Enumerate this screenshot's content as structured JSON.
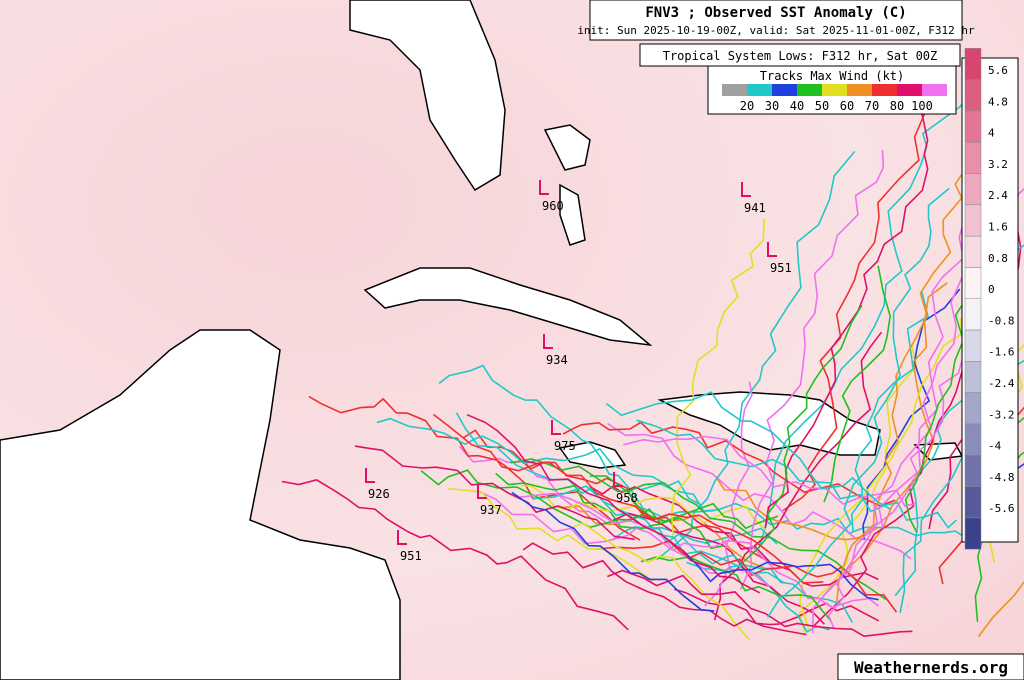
{
  "header": {
    "title": "FNV3 ; Observed SST Anomaly (C)",
    "subtitle": "init: Sun 2025-10-19-00Z, valid: Sat 2025-11-01-00Z, F312 hr"
  },
  "lows_label": "Tropical System Lows: F312 hr, Sat 00Z",
  "track_legend": {
    "title": "Tracks Max Wind (kt)",
    "labels": [
      "20",
      "30",
      "40",
      "50",
      "60",
      "70",
      "80",
      "100"
    ],
    "colors": [
      "#a0a0a0",
      "#20c8c8",
      "#2040e0",
      "#20c020",
      "#e0e020",
      "#f09020",
      "#f03030",
      "#e0106a",
      "#f070f0"
    ]
  },
  "colorbar": {
    "labels": [
      "5.6",
      "4.8",
      "4",
      "3.2",
      "2.4",
      "1.6",
      "0.8",
      "0",
      "-0.8",
      "-1.6",
      "-2.4",
      "-3.2",
      "-4",
      "-4.8",
      "-5.6"
    ]
  },
  "lows": [
    "960",
    "941",
    "951",
    "934",
    "975",
    "958",
    "926",
    "937",
    "951"
  ],
  "watermark": "Weathernerds.org"
}
